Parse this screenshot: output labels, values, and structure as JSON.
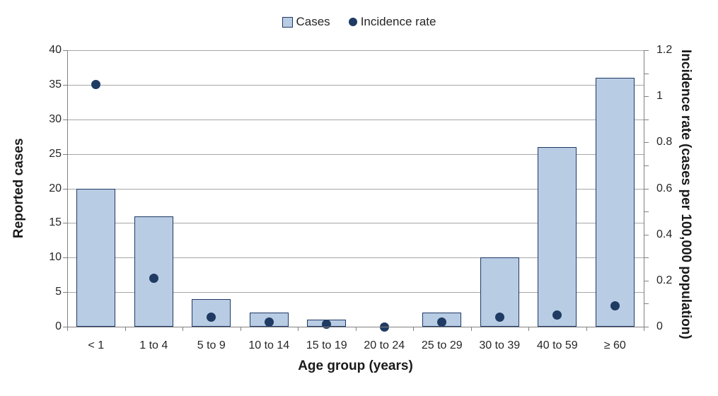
{
  "chart_data": {
    "type": "combo",
    "categories": [
      "< 1",
      "1 to 4",
      "5 to 9",
      "10 to 14",
      "15 to 19",
      "20 to 24",
      "25 to 29",
      "30 to 39",
      "40 to 59",
      "≥ 60"
    ],
    "series": [
      {
        "name": "Cases",
        "type": "bar",
        "axis": "left",
        "values": [
          20,
          16,
          4,
          2,
          1,
          0,
          2,
          10,
          26,
          36
        ]
      },
      {
        "name": "Incidence rate",
        "type": "scatter",
        "axis": "right",
        "values": [
          1.05,
          0.21,
          0.04,
          0.02,
          0.01,
          0,
          0.02,
          0.04,
          0.05,
          0.09
        ]
      }
    ],
    "xlabel": "Age group (years)",
    "left_axis": {
      "label": "Reported cases",
      "min": 0,
      "max": 40,
      "tick_step": 5
    },
    "right_axis": {
      "label": "Incidence rate (cases per 100,000 population)",
      "min": 0,
      "max": 1.2,
      "tick_step": 0.1,
      "label_step": 0.2
    },
    "legend": {
      "position": "top",
      "items": [
        {
          "label": "Cases",
          "marker": "square"
        },
        {
          "label": "Incidence rate",
          "marker": "circle"
        }
      ]
    },
    "grid": true,
    "colors": {
      "bar_fill": "#b8cce4",
      "bar_border": "#1f3864",
      "dot": "#1f3b63",
      "gridline": "#a6a6a6",
      "axis": "#808080",
      "text": "#262626"
    }
  }
}
